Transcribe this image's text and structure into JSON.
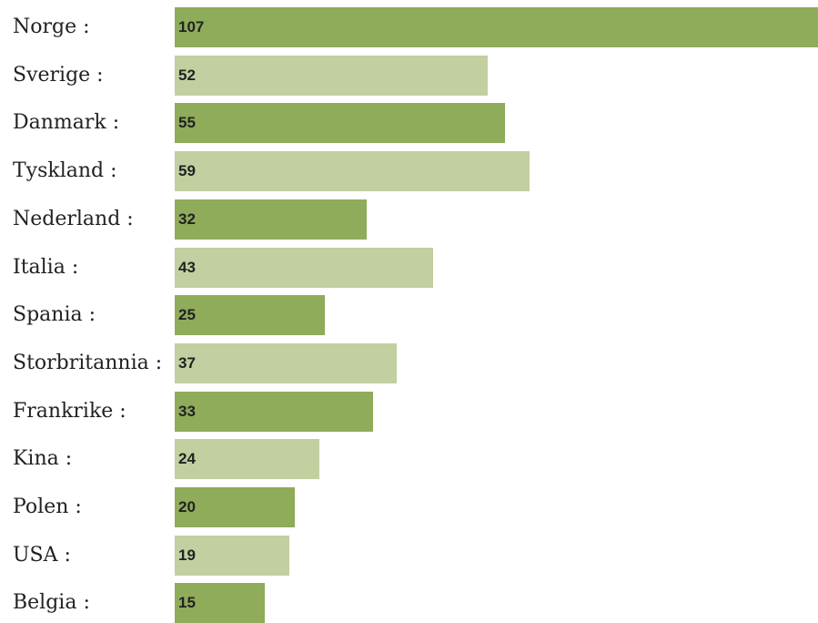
{
  "chart_data": {
    "type": "bar",
    "orientation": "horizontal",
    "categories": [
      "Norge :",
      "Sverige :",
      "Danmark :",
      "Tyskland :",
      "Nederland :",
      "Italia :",
      "Spania :",
      "Storbritannia :",
      "Frankrike :",
      "Kina :",
      "Polen :",
      "USA :",
      "Belgia :"
    ],
    "values": [
      107,
      52,
      55,
      59,
      32,
      43,
      25,
      37,
      33,
      24,
      20,
      19,
      15
    ],
    "xlim": [
      0,
      107
    ],
    "grid": false,
    "legend": "none",
    "colors": {
      "dark": "#8fac5a",
      "light": "#c2cfa0"
    }
  }
}
